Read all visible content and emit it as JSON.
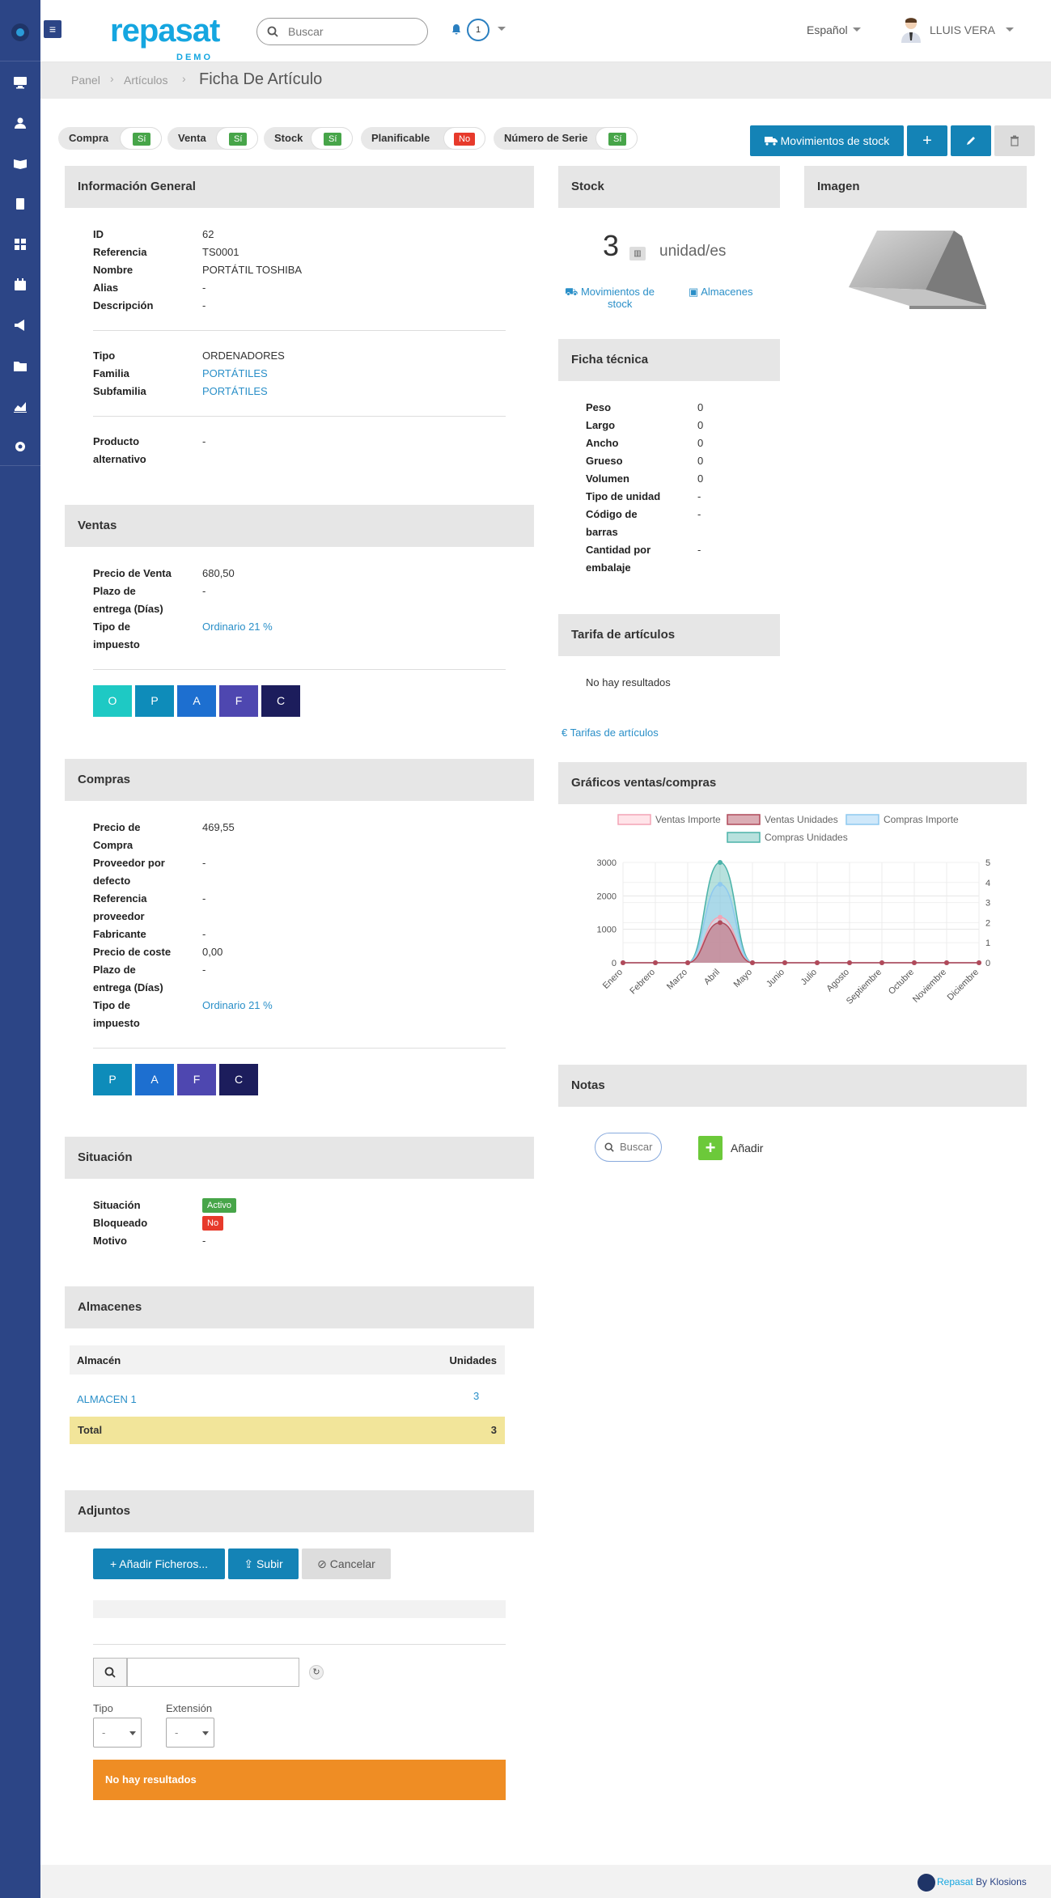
{
  "app": {
    "brand": "repasat",
    "brand_sub": "DEMO",
    "search_placeholder": "Buscar",
    "notif_count": "1",
    "language": "Español",
    "user_name": "LLUIS VERA"
  },
  "breadcrumb": {
    "items": [
      "Panel",
      "Artículos"
    ],
    "current": "Ficha De Artículo"
  },
  "flags": [
    {
      "label": "Compra",
      "value": "Sí",
      "color": "#47a549"
    },
    {
      "label": "Venta",
      "value": "Sí",
      "color": "#47a549"
    },
    {
      "label": "Stock",
      "value": "Sí",
      "color": "#47a549"
    },
    {
      "label": "Planificable",
      "value": "No",
      "color": "#e73a2b"
    },
    {
      "label": "Número de Serie",
      "value": "Sí",
      "color": "#47a549"
    }
  ],
  "actions": {
    "movimientos": "Movimientos de stock"
  },
  "general": {
    "title": "Información General",
    "rows": [
      {
        "k": "ID",
        "v": "62"
      },
      {
        "k": "Referencia",
        "v": "TS0001"
      },
      {
        "k": "Nombre",
        "v": "PORTÁTIL TOSHIBA"
      },
      {
        "k": "Alias",
        "v": "-"
      },
      {
        "k": "Descripción",
        "v": "-"
      }
    ],
    "rows2": [
      {
        "k": "Tipo",
        "v": "ORDENADORES"
      },
      {
        "k": "Familia",
        "v": "PORTÁTILES"
      },
      {
        "k": "Subfamilia",
        "v": "PORTÁTILES"
      }
    ],
    "alt_k1": "Producto",
    "alt_k2": "alternativo",
    "alt_v": "-"
  },
  "ventas": {
    "title": "Ventas",
    "precio_k": "Precio de Venta",
    "precio_v": "680,50",
    "plazo_k1": "Plazo de",
    "plazo_k2": "entrega (Días)",
    "plazo_v": "-",
    "imp_k1": "Tipo de",
    "imp_k2": "impuesto",
    "imp_v": "Ordinario 21 %",
    "letters": [
      {
        "t": "O",
        "c": "#1ec9c4"
      },
      {
        "t": "P",
        "c": "#0e8cba"
      },
      {
        "t": "A",
        "c": "#1d6fd0"
      },
      {
        "t": "F",
        "c": "#4e47b0"
      },
      {
        "t": "C",
        "c": "#1c1d5c"
      }
    ]
  },
  "compras": {
    "title": "Compras",
    "rows": [
      {
        "k1": "Precio de",
        "k2": "Compra",
        "v": "469,55"
      },
      {
        "k1": "Proveedor por",
        "k2": "defecto",
        "v": "-"
      },
      {
        "k1": "Referencia",
        "k2": "proveedor",
        "v": "-"
      },
      {
        "k1": "Fabricante",
        "k2": "",
        "v": "-"
      },
      {
        "k1": "Precio de coste",
        "k2": "",
        "v": "0,00"
      },
      {
        "k1": "Plazo de",
        "k2": "entrega (Días)",
        "v": "-"
      },
      {
        "k1": "Tipo de",
        "k2": "impuesto",
        "v": "Ordinario 21 %"
      }
    ],
    "letters": [
      {
        "t": "P",
        "c": "#0e8cba"
      },
      {
        "t": "A",
        "c": "#1d6fd0"
      },
      {
        "t": "F",
        "c": "#4e47b0"
      },
      {
        "t": "C",
        "c": "#1c1d5c"
      }
    ]
  },
  "situacion": {
    "title": "Situación",
    "sit_k": "Situación",
    "sit_v": "Activo",
    "bloq_k": "Bloqueado",
    "bloq_v": "No",
    "motivo_k": "Motivo",
    "motivo_v": "-"
  },
  "almacenes": {
    "title": "Almacenes",
    "col1": "Almacén",
    "col2": "Unidades",
    "row_name": "ALMACEN 1",
    "row_units": "3",
    "total_label": "Total",
    "total_value": "3"
  },
  "adjuntos": {
    "title": "Adjuntos",
    "add": "Añadir Ficheros...",
    "upload": "Subir",
    "cancel": "Cancelar",
    "tipo_label": "Tipo",
    "ext_label": "Extensión",
    "tipo_value": "-",
    "ext_value": "-",
    "empty": "No hay resultados"
  },
  "stock": {
    "title": "Stock",
    "qty": "3",
    "unit": "unidad/es",
    "link1a": "Movimientos de",
    "link1b": "stock",
    "link2": "Almacenes"
  },
  "imagen": {
    "title": "Imagen"
  },
  "ficha": {
    "title": "Ficha técnica",
    "rows": [
      {
        "k1": "Peso",
        "k2": "",
        "v": "0"
      },
      {
        "k1": "Largo",
        "k2": "",
        "v": "0"
      },
      {
        "k1": "Ancho",
        "k2": "",
        "v": "0"
      },
      {
        "k1": "Grueso",
        "k2": "",
        "v": "0"
      },
      {
        "k1": "Volumen",
        "k2": "",
        "v": "0"
      },
      {
        "k1": "Tipo de unidad",
        "k2": "",
        "v": "-"
      },
      {
        "k1": "Código de",
        "k2": "barras",
        "v": "-"
      },
      {
        "k1": "Cantidad por",
        "k2": "embalaje",
        "v": "-"
      }
    ]
  },
  "tarifa": {
    "title": "Tarifa de artículos",
    "empty": "No hay resultados",
    "link": "Tarifas de artículos"
  },
  "graficos": {
    "title": "Gráficos ventas/compras"
  },
  "notas": {
    "title": "Notas",
    "search_placeholder": "Buscar",
    "add": "Añadir"
  },
  "footer": {
    "brand": "Repasat",
    "by": "By",
    "company": "Klosions"
  },
  "chart_data": {
    "type": "line",
    "categories": [
      "Enero",
      "Febrero",
      "Marzo",
      "Abril",
      "Mayo",
      "Junio",
      "Julio",
      "Agosto",
      "Septiembre",
      "Octubre",
      "Noviembre",
      "Diciembre"
    ],
    "ylim_left": [
      0,
      3000
    ],
    "yticks_left": [
      "0",
      "1000",
      "2000",
      "3000"
    ],
    "ylim_right": [
      0,
      5
    ],
    "yticks_right": [
      "0",
      "1",
      "2",
      "3",
      "4",
      "5"
    ],
    "legend_position": "top",
    "series": [
      {
        "name": "Ventas Importe",
        "axis": "left",
        "values": [
          0,
          0,
          0,
          1361,
          0,
          0,
          0,
          0,
          0,
          0,
          0,
          0
        ],
        "stroke": "#f3a4b5",
        "fill": "rgba(255,205,215,0.55)"
      },
      {
        "name": "Ventas Unidades",
        "axis": "right",
        "values": [
          0,
          0,
          0,
          2,
          0,
          0,
          0,
          0,
          0,
          0,
          0,
          0
        ],
        "stroke": "#b04a5a",
        "fill": "rgba(176,74,90,0.45)"
      },
      {
        "name": "Compras Importe",
        "axis": "left",
        "values": [
          0,
          0,
          0,
          2348,
          0,
          0,
          0,
          0,
          0,
          0,
          0,
          0
        ],
        "stroke": "#8ec9ef",
        "fill": "rgba(160,210,245,0.5)"
      },
      {
        "name": "Compras Unidades",
        "axis": "right",
        "values": [
          0,
          0,
          0,
          5,
          0,
          0,
          0,
          0,
          0,
          0,
          0,
          0
        ],
        "stroke": "#4bb3a9",
        "fill": "rgba(75,179,169,0.4)"
      }
    ]
  }
}
